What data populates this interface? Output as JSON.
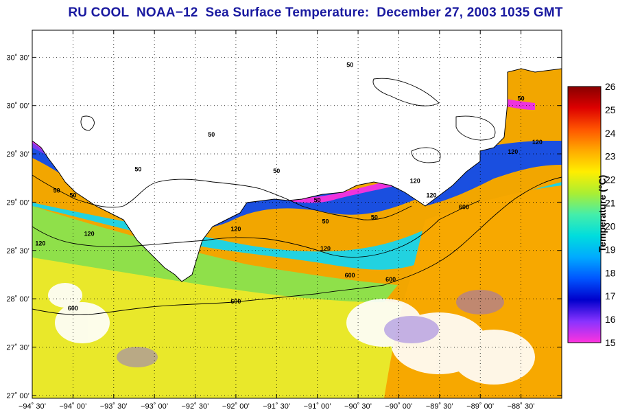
{
  "title": "RU COOL  NOAA−12  Sea Surface Temperature:  December 27, 2003 1035 GMT",
  "map": {
    "lat_labels": [
      "30˚ 30’",
      "30˚ 00’",
      "29˚ 30’",
      "29˚ 00’",
      "28˚ 30’",
      "28˚ 00’",
      "27˚ 30’",
      "27˚ 00’"
    ],
    "lon_labels": [
      "−94˚ 30’",
      "−94˚ 00’",
      "−93˚ 30’",
      "−93˚ 00’",
      "−92˚ 30’",
      "−92˚ 00’",
      "−91˚ 30’",
      "−91˚ 00’",
      "−90˚ 30’",
      "−90˚ 00’",
      "−89˚ 30’",
      "−89˚ 00’",
      "−88˚ 30’"
    ],
    "lat_range": [
      26.97,
      30.78
    ],
    "lon_range": [
      -94.5,
      -88.0
    ],
    "land_color": "#ffffff",
    "isobath_labels": [
      {
        "text": "50",
        "lon": -94.2,
        "lat": 29.1
      },
      {
        "text": "50",
        "lon": -94.0,
        "lat": 29.05
      },
      {
        "text": "50",
        "lon": -93.2,
        "lat": 29.32
      },
      {
        "text": "50",
        "lon": -92.3,
        "lat": 29.68
      },
      {
        "text": "50",
        "lon": -91.5,
        "lat": 29.3
      },
      {
        "text": "50",
        "lon": -91.0,
        "lat": 29.0
      },
      {
        "text": "50",
        "lon": -90.9,
        "lat": 28.78
      },
      {
        "text": "50",
        "lon": -90.3,
        "lat": 28.82
      },
      {
        "text": "50",
        "lon": -90.6,
        "lat": 30.4
      },
      {
        "text": "50",
        "lon": -88.5,
        "lat": 30.05
      },
      {
        "text": "120",
        "lon": -94.4,
        "lat": 28.55
      },
      {
        "text": "120",
        "lon": -93.8,
        "lat": 28.65
      },
      {
        "text": "120",
        "lon": -92.0,
        "lat": 28.7
      },
      {
        "text": "120",
        "lon": -90.9,
        "lat": 28.5
      },
      {
        "text": "120",
        "lon": -89.8,
        "lat": 29.2
      },
      {
        "text": "120",
        "lon": -89.6,
        "lat": 29.05
      },
      {
        "text": "120",
        "lon": -88.6,
        "lat": 29.5
      },
      {
        "text": "120",
        "lon": -88.3,
        "lat": 29.6
      },
      {
        "text": "600",
        "lon": -94.0,
        "lat": 27.88
      },
      {
        "text": "600",
        "lon": -92.0,
        "lat": 27.95
      },
      {
        "text": "600",
        "lon": -90.6,
        "lat": 28.22
      },
      {
        "text": "600",
        "lon": -90.1,
        "lat": 28.18
      },
      {
        "text": "600",
        "lon": -89.2,
        "lat": 28.93
      }
    ]
  },
  "colorbar": {
    "title": "Temperature (°C)",
    "min": 15,
    "max": 26,
    "tick_labels": [
      "26",
      "25",
      "24",
      "23",
      "22",
      "21",
      "20",
      "19",
      "18",
      "17",
      "16",
      "15"
    ],
    "colors": [
      "#ff33dd",
      "#8833ff",
      "#0000cc",
      "#0055ff",
      "#00aaff",
      "#00dddd",
      "#44eeaa",
      "#aaee33",
      "#ffee00",
      "#ffaa00",
      "#ff5500",
      "#dd0000",
      "#880000"
    ]
  }
}
